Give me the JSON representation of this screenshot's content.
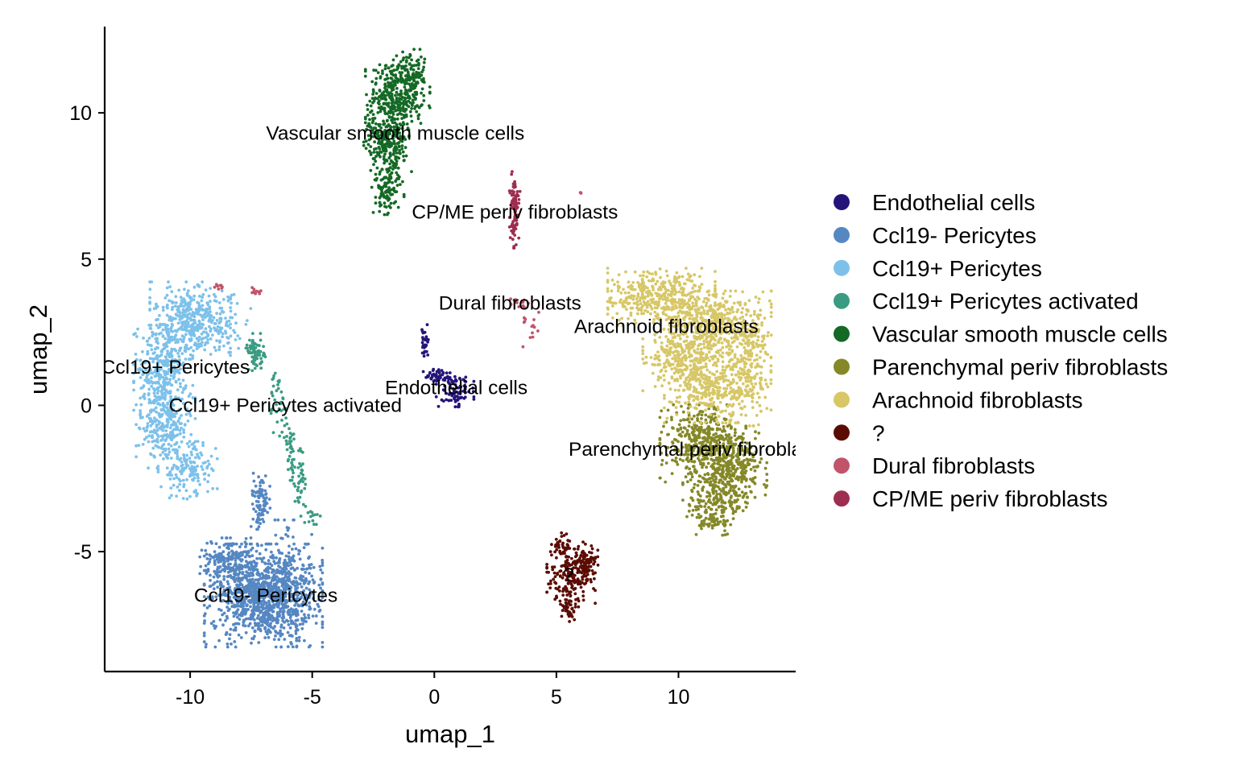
{
  "chart_data": {
    "type": "scatter",
    "title": "",
    "xlabel": "umap_1",
    "ylabel": "umap_2",
    "xlim": [
      -13.5,
      14.8
    ],
    "ylim": [
      -9.1,
      12.95
    ],
    "xticks": [
      -10,
      -5,
      0,
      5,
      10
    ],
    "yticks": [
      -5,
      0,
      5,
      10
    ],
    "xtick_labels": [
      "-10",
      "-5",
      "0",
      "5",
      "10"
    ],
    "ytick_labels": [
      "-5",
      "0",
      "5",
      "10"
    ],
    "legend_position": "right",
    "grid": false,
    "series": [
      {
        "name": "Endothelial cells",
        "color": "#24147a",
        "label_text": "Endothelial cells",
        "label_at": [
          0.9,
          0.6
        ],
        "clusters": [
          {
            "center": [
              -0.4,
              2.1
            ],
            "sd": [
              0.07,
              0.3
            ],
            "n": 30
          },
          {
            "center": [
              0.1,
              1.0
            ],
            "sd": [
              0.35,
              0.12
            ],
            "n": 50
          },
          {
            "center": [
              0.85,
              0.5
            ],
            "sd": [
              0.35,
              0.25
            ],
            "n": 90
          }
        ]
      },
      {
        "name": "Ccl19- Pericytes",
        "color": "#5587c2",
        "label_text": "Ccl19- Pericytes",
        "label_at": [
          -6.9,
          -6.5
        ],
        "clusters": [
          {
            "center": [
              -7.0,
              -6.5
            ],
            "sd": [
              1.1,
              0.8
            ],
            "n": 1100
          },
          {
            "center": [
              -8.5,
              -5.3
            ],
            "sd": [
              0.5,
              0.35
            ],
            "n": 150
          },
          {
            "center": [
              -7.1,
              -3.4
            ],
            "sd": [
              0.2,
              0.55
            ],
            "n": 90
          },
          {
            "center": [
              -5.9,
              -5.9
            ],
            "sd": [
              0.4,
              0.9
            ],
            "n": 120
          }
        ]
      },
      {
        "name": "Ccl19+ Pericytes",
        "color": "#7dc1ea",
        "label_text": "Ccl19+ Pericytes",
        "label_at": [
          -10.6,
          1.3
        ],
        "clusters": [
          {
            "center": [
              -10.0,
              2.9
            ],
            "sd": [
              0.75,
              0.6
            ],
            "n": 380
          },
          {
            "center": [
              -11.1,
              1.2
            ],
            "sd": [
              0.55,
              0.7
            ],
            "n": 300
          },
          {
            "center": [
              -11.0,
              -0.6
            ],
            "sd": [
              0.55,
              0.7
            ],
            "n": 280
          },
          {
            "center": [
              -10.1,
              -2.1
            ],
            "sd": [
              0.55,
              0.5
            ],
            "n": 150
          },
          {
            "center": [
              -8.4,
              2.8
            ],
            "sd": [
              0.4,
              0.45
            ],
            "n": 60
          }
        ]
      },
      {
        "name": "Ccl19+ Pericytes activated",
        "color": "#3a9b83",
        "label_text": "Ccl19+ Pericytes activated",
        "label_at": [
          -6.1,
          0.0
        ],
        "clusters": [
          {
            "center": [
              -7.3,
              1.8
            ],
            "sd": [
              0.2,
              0.3
            ],
            "n": 70
          },
          {
            "center": [
              -6.4,
              0.0
            ],
            "sd": [
              0.2,
              0.5
            ],
            "n": 40
          },
          {
            "center": [
              -5.9,
              -1.6
            ],
            "sd": [
              0.12,
              0.5
            ],
            "n": 40
          },
          {
            "center": [
              -5.5,
              -2.8
            ],
            "sd": [
              0.12,
              0.6
            ],
            "n": 40
          },
          {
            "center": [
              -5.0,
              -3.85
            ],
            "sd": [
              0.15,
              0.1
            ],
            "n": 12
          }
        ]
      },
      {
        "name": "Vascular smooth muscle cells",
        "color": "#146925",
        "label_text": "Vascular smooth muscle cells",
        "label_at": [
          -1.6,
          9.3
        ],
        "clusters": [
          {
            "center": [
              -1.5,
              10.6
            ],
            "sd": [
              0.6,
              0.55
            ],
            "n": 320
          },
          {
            "center": [
              -1.9,
              9.0
            ],
            "sd": [
              0.45,
              0.6
            ],
            "n": 280
          },
          {
            "center": [
              -1.9,
              7.4
            ],
            "sd": [
              0.3,
              0.4
            ],
            "n": 100
          },
          {
            "center": [
              -0.9,
              11.4
            ],
            "sd": [
              0.3,
              0.35
            ],
            "n": 80
          }
        ]
      },
      {
        "name": "Parenchymal periv fibroblasts",
        "color": "#858827",
        "label_text": "Parenchymal periv fibroblasts",
        "label_at": [
          10.8,
          -1.5
        ],
        "clusters": [
          {
            "center": [
              11.0,
              -1.3
            ],
            "sd": [
              0.8,
              0.6
            ],
            "n": 420
          },
          {
            "center": [
              12.3,
              -2.1
            ],
            "sd": [
              0.6,
              0.55
            ],
            "n": 260
          },
          {
            "center": [
              11.5,
              -3.2
            ],
            "sd": [
              0.6,
              0.4
            ],
            "n": 180
          },
          {
            "center": [
              11.4,
              -4.0
            ],
            "sd": [
              0.4,
              0.2
            ],
            "n": 50
          }
        ]
      },
      {
        "name": "Arachnoid fibroblasts",
        "color": "#d7c767",
        "label_text": "Arachnoid fibroblasts",
        "label_at": [
          9.5,
          2.7
        ],
        "clusters": [
          {
            "center": [
              9.3,
              3.7
            ],
            "sd": [
              1.0,
              0.45
            ],
            "n": 420
          },
          {
            "center": [
              11.6,
              2.7
            ],
            "sd": [
              1.0,
              0.55
            ],
            "n": 420
          },
          {
            "center": [
              10.3,
              1.6
            ],
            "sd": [
              0.8,
              0.5
            ],
            "n": 300
          },
          {
            "center": [
              11.4,
              0.5
            ],
            "sd": [
              0.9,
              0.5
            ],
            "n": 280
          },
          {
            "center": [
              12.8,
              1.5
            ],
            "sd": [
              0.45,
              1.0
            ],
            "n": 220
          }
        ]
      },
      {
        "name": "?",
        "color": "#5a0c03",
        "label_text": "?",
        "label_at": [
          5.5,
          -5.8
        ],
        "clusters": [
          {
            "center": [
              5.6,
              -5.9
            ],
            "sd": [
              0.45,
              0.45
            ],
            "n": 180
          },
          {
            "center": [
              6.2,
              -5.3
            ],
            "sd": [
              0.3,
              0.3
            ],
            "n": 70
          },
          {
            "center": [
              5.2,
              -4.8
            ],
            "sd": [
              0.18,
              0.2
            ],
            "n": 40
          },
          {
            "center": [
              5.5,
              -6.95
            ],
            "sd": [
              0.15,
              0.2
            ],
            "n": 40
          }
        ]
      },
      {
        "name": "Dural fibroblasts",
        "color": "#c1546b",
        "label_text": "Dural fibroblasts",
        "label_at": [
          3.1,
          3.5
        ],
        "clusters": [
          {
            "center": [
              -8.8,
              4.05
            ],
            "sd": [
              0.12,
              0.04
            ],
            "n": 8
          },
          {
            "center": [
              -7.2,
              3.9
            ],
            "sd": [
              0.15,
              0.07
            ],
            "n": 10
          },
          {
            "center": [
              3.4,
              3.5
            ],
            "sd": [
              0.25,
              0.08
            ],
            "n": 14
          },
          {
            "center": [
              4.0,
              2.7
            ],
            "sd": [
              0.3,
              0.35
            ],
            "n": 14
          },
          {
            "center": [
              6.0,
              7.25
            ],
            "sd": [
              0.04,
              0.03
            ],
            "n": 3
          }
        ]
      },
      {
        "name": "CP/ME periv fibroblasts",
        "color": "#9d2e4f",
        "label_text": "CP/ME periv fibroblasts",
        "label_at": [
          3.3,
          6.6
        ],
        "clusters": [
          {
            "center": [
              3.3,
              6.7
            ],
            "sd": [
              0.1,
              0.6
            ],
            "n": 100
          }
        ]
      }
    ]
  }
}
